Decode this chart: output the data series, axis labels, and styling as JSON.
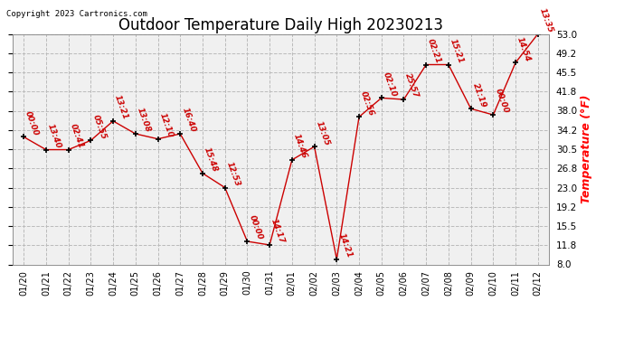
{
  "title": "Outdoor Temperature Daily High 20230213",
  "copyright_text": "Copyright 2023 Cartronics.com",
  "ylabel": "Temperature (°F)",
  "ylabel_color": "#ff0000",
  "background_color": "#ffffff",
  "plot_bg_color": "#f0f0f0",
  "line_color": "#cc0000",
  "label_color": "#cc0000",
  "x_labels": [
    "01/20",
    "01/21",
    "01/22",
    "01/23",
    "01/24",
    "01/25",
    "01/26",
    "01/27",
    "01/28",
    "01/29",
    "01/30",
    "01/31",
    "02/01",
    "02/02",
    "02/03",
    "02/04",
    "02/05",
    "02/06",
    "02/07",
    "02/08",
    "02/09",
    "02/10",
    "02/11",
    "02/12"
  ],
  "y_values": [
    32.9,
    30.4,
    30.4,
    32.2,
    36.0,
    33.5,
    32.5,
    33.5,
    25.8,
    23.0,
    12.5,
    11.8,
    28.4,
    31.0,
    9.0,
    36.8,
    40.5,
    40.2,
    47.0,
    47.0,
    38.4,
    37.2,
    47.4,
    53.0
  ],
  "point_labels": [
    "00:00",
    "13:40",
    "02:41",
    "05:55",
    "13:21",
    "13:08",
    "12:10",
    "16:40",
    "15:48",
    "12:53",
    "00:00",
    "14:17",
    "14:46",
    "13:05",
    "14:21",
    "02:56",
    "02:10",
    "25:57",
    "02:21",
    "15:21",
    "21:19",
    "00:00",
    "14:54",
    "13:35"
  ],
  "ylim": [
    8.0,
    53.0
  ],
  "yticks": [
    8.0,
    11.8,
    15.5,
    19.2,
    23.0,
    26.8,
    30.5,
    34.2,
    38.0,
    41.8,
    45.5,
    49.2,
    53.0
  ],
  "grid_color": "#bbbbbb",
  "title_fontsize": 12,
  "label_fontsize": 6.5,
  "xtick_fontsize": 7,
  "ytick_fontsize": 7.5
}
